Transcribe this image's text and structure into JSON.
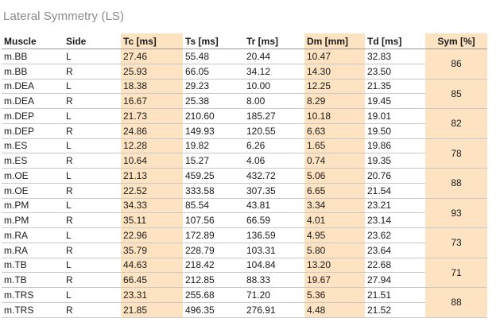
{
  "title": "Lateral Symmetry (LS)",
  "headers": [
    "Muscle",
    "Side",
    "Tc [ms]",
    "Ts [ms]",
    "Tr [ms]",
    "Dm [mm]",
    "Td [ms]",
    "Sym [%]"
  ],
  "rows": [
    [
      "m.BB",
      "L",
      "27.46",
      "55.48",
      "20.44",
      "10.47",
      "32.83"
    ],
    [
      "m.BB",
      "R",
      "25.93",
      "66.05",
      "34.12",
      "14.30",
      "23.50"
    ],
    [
      "m.DEA",
      "L",
      "18.38",
      "29.23",
      "10.00",
      "12.25",
      "21.35"
    ],
    [
      "m.DEA",
      "R",
      "16.67",
      "25.38",
      "8.00",
      "8.29",
      "19.45"
    ],
    [
      "m.DEP",
      "L",
      "21.73",
      "210.60",
      "185.27",
      "10.18",
      "19.01"
    ],
    [
      "m.DEP",
      "R",
      "24.86",
      "149.93",
      "120.55",
      "6.63",
      "19.50"
    ],
    [
      "m.ES",
      "L",
      "12.28",
      "19.82",
      "6.26",
      "1.65",
      "19.86"
    ],
    [
      "m.ES",
      "R",
      "10.64",
      "15.27",
      "4.06",
      "0.74",
      "19.35"
    ],
    [
      "m.OE",
      "L",
      "21.13",
      "459.25",
      "432.72",
      "5.06",
      "20.76"
    ],
    [
      "m.OE",
      "R",
      "22.52",
      "333.58",
      "307.35",
      "6.65",
      "21.54"
    ],
    [
      "m.PM",
      "L",
      "34.33",
      "85.54",
      "43.81",
      "3.34",
      "23.21"
    ],
    [
      "m.PM",
      "R",
      "35.11",
      "107.56",
      "66.59",
      "4.01",
      "23.14"
    ],
    [
      "m.RA",
      "L",
      "22.96",
      "172.89",
      "136.59",
      "4.95",
      "23.62"
    ],
    [
      "m.RA",
      "R",
      "35.79",
      "228.79",
      "103.31",
      "5.80",
      "23.64"
    ],
    [
      "m.TB",
      "L",
      "44.63",
      "218.42",
      "104.84",
      "13.20",
      "22.68"
    ],
    [
      "m.TB",
      "R",
      "66.45",
      "212.85",
      "88.33",
      "19.67",
      "27.94"
    ],
    [
      "m.TRS",
      "L",
      "23.31",
      "255.68",
      "71.20",
      "5.36",
      "21.51"
    ],
    [
      "m.TRS",
      "R",
      "21.85",
      "496.35",
      "276.91",
      "4.48",
      "21.52"
    ]
  ],
  "sym": [
    "86",
    "85",
    "82",
    "78",
    "88",
    "93",
    "73",
    "71",
    "88"
  ],
  "colors": {
    "highlight": "#fde3c2",
    "title": "#8a8a8a"
  }
}
